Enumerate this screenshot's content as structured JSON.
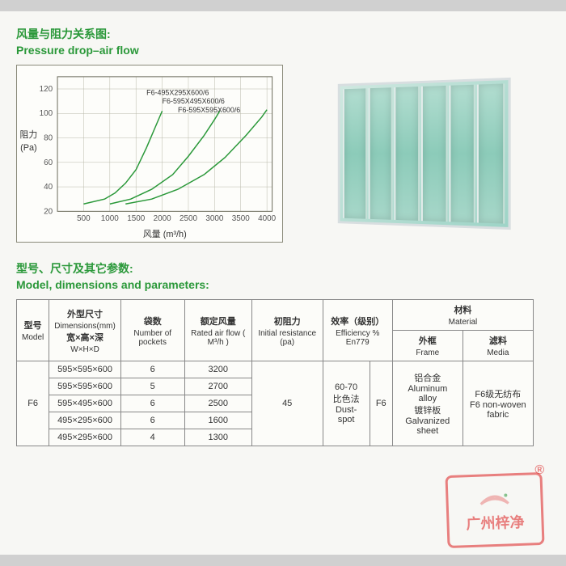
{
  "section1": {
    "title_cn": "风量与阻力关系图:",
    "title_en": "Pressure drop–air flow"
  },
  "chart": {
    "type": "line",
    "xlabel": "风量 (m³/h)",
    "ylabel_cn": "阻力",
    "ylabel_unit": "(Pa)",
    "xlim": [
      0,
      4100
    ],
    "ylim": [
      20,
      130
    ],
    "xticks": [
      500,
      1000,
      1500,
      2000,
      2500,
      3000,
      3500,
      4000
    ],
    "yticks": [
      20,
      40,
      60,
      80,
      100,
      120
    ],
    "grid_color": "#b8b8a8",
    "axis_color": "#6a6a5a",
    "background_color": "#fdfdfa",
    "line_color": "#2a9839",
    "line_width": 1.5,
    "label_fontsize": 10,
    "series": [
      {
        "name": "F6-495X295X600/6",
        "points": [
          [
            500,
            26
          ],
          [
            900,
            30
          ],
          [
            1100,
            35
          ],
          [
            1300,
            43
          ],
          [
            1500,
            54
          ],
          [
            1700,
            72
          ],
          [
            1900,
            92
          ],
          [
            2000,
            102
          ]
        ]
      },
      {
        "name": "F6-595X495X600/6",
        "points": [
          [
            1000,
            26
          ],
          [
            1400,
            30
          ],
          [
            1800,
            38
          ],
          [
            2200,
            50
          ],
          [
            2500,
            65
          ],
          [
            2800,
            82
          ],
          [
            3000,
            95
          ],
          [
            3100,
            102
          ]
        ]
      },
      {
        "name": "F6-595X595X600/6",
        "points": [
          [
            1300,
            26
          ],
          [
            1800,
            30
          ],
          [
            2300,
            38
          ],
          [
            2800,
            50
          ],
          [
            3200,
            64
          ],
          [
            3600,
            82
          ],
          [
            3900,
            97
          ],
          [
            4000,
            103
          ]
        ]
      }
    ],
    "series_labels": [
      "F6-495X295X600/6",
      "F6-595X495X600/6",
      "F6-595X595X600/6"
    ]
  },
  "product": {
    "pocket_count": 6,
    "color": "#9ed4c7",
    "frame_color": "#d8dee0"
  },
  "section2": {
    "title_cn": "型号、尺寸及其它参数:",
    "title_en": "Model, dimensions and parameters:"
  },
  "table": {
    "headers": {
      "model": {
        "cn": "型号",
        "en": "Model"
      },
      "dims": {
        "cn": "外型尺寸",
        "en": "Dimensions(mm)",
        "sub_cn": "宽×高×深",
        "sub_en": "W×H×D"
      },
      "pockets": {
        "cn": "袋数",
        "en": "Number of pockets"
      },
      "airflow": {
        "cn": "额定风量",
        "en": "Rated air flow ( M³/h )"
      },
      "initres": {
        "cn": "初阻力",
        "en": "Initial resistance (pa)"
      },
      "eff": {
        "cn": "效率（级别）",
        "en": "Efficiency % En779"
      },
      "material": {
        "cn": "材料",
        "en": "Material"
      },
      "frame": {
        "cn": "外框",
        "en": "Frame"
      },
      "media": {
        "cn": "滤料",
        "en": "Media"
      }
    },
    "model": "F6",
    "rows": [
      {
        "dims": "595×595×600",
        "pockets": "6",
        "airflow": "3200"
      },
      {
        "dims": "595×595×600",
        "pockets": "5",
        "airflow": "2700"
      },
      {
        "dims": "595×495×600",
        "pockets": "6",
        "airflow": "2500"
      },
      {
        "dims": "495×295×600",
        "pockets": "6",
        "airflow": "1600"
      },
      {
        "dims": "495×295×600",
        "pockets": "4",
        "airflow": "1300"
      }
    ],
    "initres": "45",
    "eff_val": "60-70",
    "eff_method_cn": "比色法",
    "eff_method_en": "Dust-spot",
    "eff_grade": "F6",
    "frame_cn1": "铝合金",
    "frame_en1": "Aluminum alloy",
    "frame_cn2": "镀锌板",
    "frame_en2": "Galvanized sheet",
    "media_cn": "F6级无纺布",
    "media_en": "F6 non-woven fabric"
  },
  "stamp": {
    "text": "广州梓净",
    "reg": "®"
  }
}
